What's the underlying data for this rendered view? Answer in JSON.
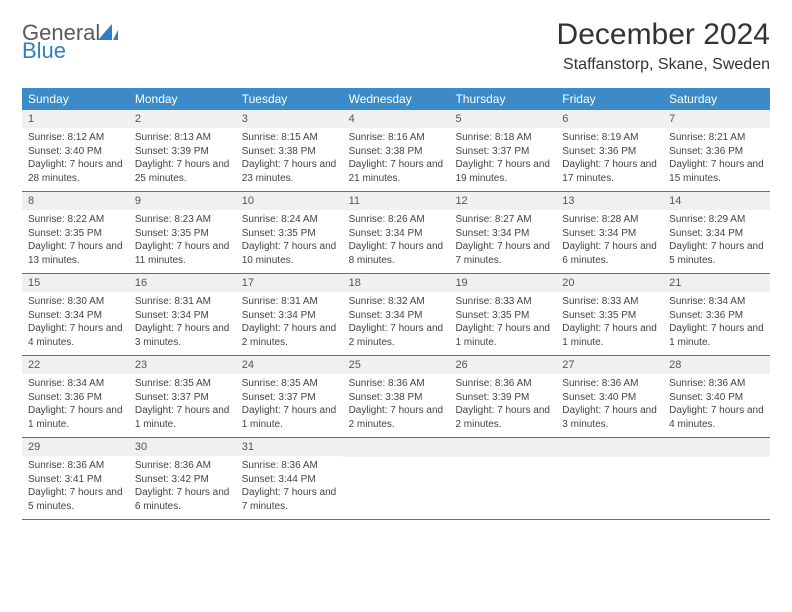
{
  "brand": {
    "general": "General",
    "blue": "Blue"
  },
  "title": "December 2024",
  "location": "Staffanstorp, Skane, Sweden",
  "colors": {
    "header_bg": "#3b8bc8",
    "daynum_bg": "#eef0f2",
    "border": "#2f7fc1",
    "text": "#333333",
    "body_text": "#444444",
    "logo_gray": "#5a5a5a",
    "logo_blue": "#2f7fc1"
  },
  "day_names": [
    "Sunday",
    "Monday",
    "Tuesday",
    "Wednesday",
    "Thursday",
    "Friday",
    "Saturday"
  ],
  "weeks": [
    [
      {
        "n": "1",
        "sunrise": "8:12 AM",
        "sunset": "3:40 PM",
        "daylight": "7 hours and 28 minutes."
      },
      {
        "n": "2",
        "sunrise": "8:13 AM",
        "sunset": "3:39 PM",
        "daylight": "7 hours and 25 minutes."
      },
      {
        "n": "3",
        "sunrise": "8:15 AM",
        "sunset": "3:38 PM",
        "daylight": "7 hours and 23 minutes."
      },
      {
        "n": "4",
        "sunrise": "8:16 AM",
        "sunset": "3:38 PM",
        "daylight": "7 hours and 21 minutes."
      },
      {
        "n": "5",
        "sunrise": "8:18 AM",
        "sunset": "3:37 PM",
        "daylight": "7 hours and 19 minutes."
      },
      {
        "n": "6",
        "sunrise": "8:19 AM",
        "sunset": "3:36 PM",
        "daylight": "7 hours and 17 minutes."
      },
      {
        "n": "7",
        "sunrise": "8:21 AM",
        "sunset": "3:36 PM",
        "daylight": "7 hours and 15 minutes."
      }
    ],
    [
      {
        "n": "8",
        "sunrise": "8:22 AM",
        "sunset": "3:35 PM",
        "daylight": "7 hours and 13 minutes."
      },
      {
        "n": "9",
        "sunrise": "8:23 AM",
        "sunset": "3:35 PM",
        "daylight": "7 hours and 11 minutes."
      },
      {
        "n": "10",
        "sunrise": "8:24 AM",
        "sunset": "3:35 PM",
        "daylight": "7 hours and 10 minutes."
      },
      {
        "n": "11",
        "sunrise": "8:26 AM",
        "sunset": "3:34 PM",
        "daylight": "7 hours and 8 minutes."
      },
      {
        "n": "12",
        "sunrise": "8:27 AM",
        "sunset": "3:34 PM",
        "daylight": "7 hours and 7 minutes."
      },
      {
        "n": "13",
        "sunrise": "8:28 AM",
        "sunset": "3:34 PM",
        "daylight": "7 hours and 6 minutes."
      },
      {
        "n": "14",
        "sunrise": "8:29 AM",
        "sunset": "3:34 PM",
        "daylight": "7 hours and 5 minutes."
      }
    ],
    [
      {
        "n": "15",
        "sunrise": "8:30 AM",
        "sunset": "3:34 PM",
        "daylight": "7 hours and 4 minutes."
      },
      {
        "n": "16",
        "sunrise": "8:31 AM",
        "sunset": "3:34 PM",
        "daylight": "7 hours and 3 minutes."
      },
      {
        "n": "17",
        "sunrise": "8:31 AM",
        "sunset": "3:34 PM",
        "daylight": "7 hours and 2 minutes."
      },
      {
        "n": "18",
        "sunrise": "8:32 AM",
        "sunset": "3:34 PM",
        "daylight": "7 hours and 2 minutes."
      },
      {
        "n": "19",
        "sunrise": "8:33 AM",
        "sunset": "3:35 PM",
        "daylight": "7 hours and 1 minute."
      },
      {
        "n": "20",
        "sunrise": "8:33 AM",
        "sunset": "3:35 PM",
        "daylight": "7 hours and 1 minute."
      },
      {
        "n": "21",
        "sunrise": "8:34 AM",
        "sunset": "3:36 PM",
        "daylight": "7 hours and 1 minute."
      }
    ],
    [
      {
        "n": "22",
        "sunrise": "8:34 AM",
        "sunset": "3:36 PM",
        "daylight": "7 hours and 1 minute."
      },
      {
        "n": "23",
        "sunrise": "8:35 AM",
        "sunset": "3:37 PM",
        "daylight": "7 hours and 1 minute."
      },
      {
        "n": "24",
        "sunrise": "8:35 AM",
        "sunset": "3:37 PM",
        "daylight": "7 hours and 1 minute."
      },
      {
        "n": "25",
        "sunrise": "8:36 AM",
        "sunset": "3:38 PM",
        "daylight": "7 hours and 2 minutes."
      },
      {
        "n": "26",
        "sunrise": "8:36 AM",
        "sunset": "3:39 PM",
        "daylight": "7 hours and 2 minutes."
      },
      {
        "n": "27",
        "sunrise": "8:36 AM",
        "sunset": "3:40 PM",
        "daylight": "7 hours and 3 minutes."
      },
      {
        "n": "28",
        "sunrise": "8:36 AM",
        "sunset": "3:40 PM",
        "daylight": "7 hours and 4 minutes."
      }
    ],
    [
      {
        "n": "29",
        "sunrise": "8:36 AM",
        "sunset": "3:41 PM",
        "daylight": "7 hours and 5 minutes."
      },
      {
        "n": "30",
        "sunrise": "8:36 AM",
        "sunset": "3:42 PM",
        "daylight": "7 hours and 6 minutes."
      },
      {
        "n": "31",
        "sunrise": "8:36 AM",
        "sunset": "3:44 PM",
        "daylight": "7 hours and 7 minutes."
      },
      null,
      null,
      null,
      null
    ]
  ],
  "labels": {
    "sunrise_prefix": "Sunrise: ",
    "sunset_prefix": "Sunset: ",
    "daylight_prefix": "Daylight: "
  }
}
